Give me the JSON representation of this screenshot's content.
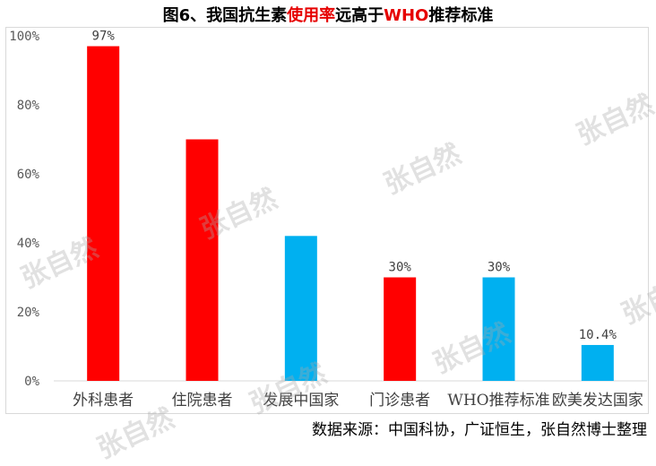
{
  "title": {
    "part1": "图6、我国抗生素",
    "part2": "使用率",
    "part3": "远高于",
    "part4": "WHO",
    "part5": "推荐标准"
  },
  "source": "数据来源：中国科协，广证恒生，张自然博士整理",
  "watermark": "张自然",
  "colors": {
    "red": "#ff0000",
    "blue": "#00b0f0",
    "grid": "#d9d9d9",
    "axis_text": "#595959"
  },
  "chart_data": {
    "type": "bar",
    "title": "",
    "xlabel": "",
    "ylabel": "",
    "ylim": [
      0,
      100
    ],
    "y_ticks": [
      "0%",
      "20%",
      "40%",
      "60%",
      "80%",
      "100%"
    ],
    "categories": [
      "外科患者",
      "住院患者",
      "发展中国家",
      "门诊患者",
      "WHO推荐标准",
      "欧美发达国家"
    ],
    "values": [
      97,
      70,
      42,
      30,
      30,
      10.4
    ],
    "data_labels": [
      "97%",
      "",
      "",
      "30%",
      "30%",
      "10.4%"
    ],
    "bar_colors": [
      "red",
      "red",
      "blue",
      "red",
      "blue",
      "blue"
    ],
    "grid": false,
    "legend": "none"
  }
}
